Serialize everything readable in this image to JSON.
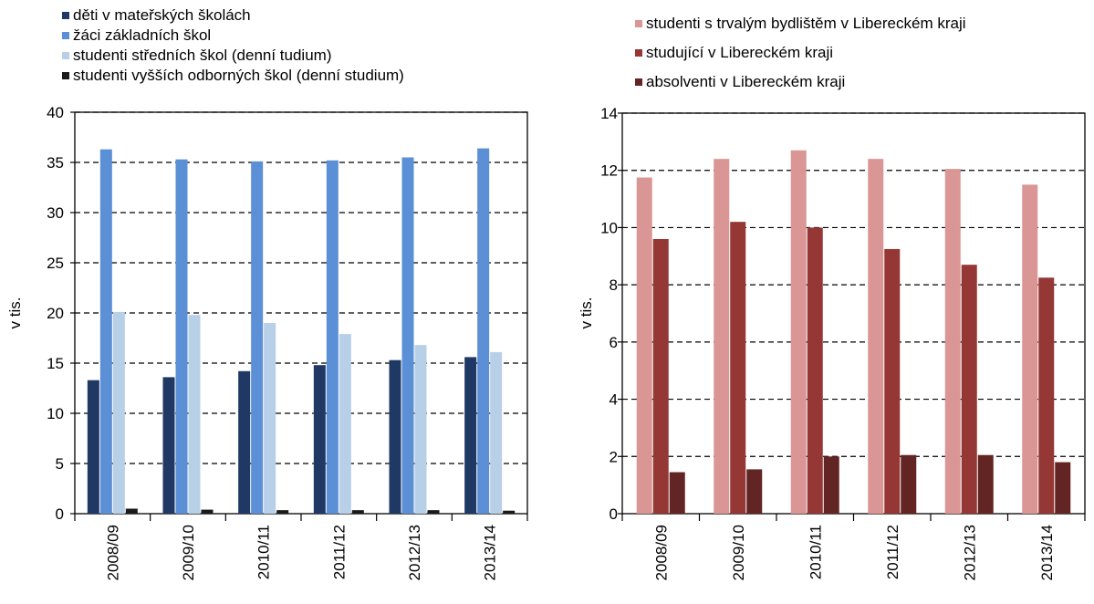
{
  "chart_data": [
    {
      "type": "bar",
      "categories": [
        "2008/09",
        "2009/10",
        "2010/11",
        "2011/12",
        "2012/13",
        "2013/14"
      ],
      "ylabel": "v tis.",
      "xlabel": "",
      "ylim": [
        0,
        40
      ],
      "yticks": [
        0,
        5,
        10,
        15,
        20,
        25,
        30,
        35,
        40
      ],
      "grid": true,
      "legend_position": "top-left",
      "series": [
        {
          "name": "děti v mateřských školách",
          "color": "#1f3864",
          "values": [
            13.3,
            13.6,
            14.2,
            14.8,
            15.3,
            15.6
          ]
        },
        {
          "name": "žáci základních škol",
          "color": "#5b8fd6",
          "values": [
            36.3,
            35.3,
            35.1,
            35.2,
            35.5,
            36.4
          ]
        },
        {
          "name": "studenti středních škol (denní tudium)",
          "color": "#b8cfe8",
          "values": [
            20.1,
            19.8,
            19.0,
            17.9,
            16.8,
            16.1
          ]
        },
        {
          "name": "studenti vyšších odborných škol (denní studium)",
          "color": "#1a1a1a",
          "values": [
            0.5,
            0.4,
            0.35,
            0.35,
            0.35,
            0.3
          ]
        }
      ]
    },
    {
      "type": "bar",
      "categories": [
        "2008/09",
        "2009/10",
        "2010/11",
        "2011/12",
        "2012/13",
        "2013/14"
      ],
      "ylabel": "v tis.",
      "xlabel": "",
      "ylim": [
        0,
        14
      ],
      "yticks": [
        0,
        2,
        4,
        6,
        8,
        10,
        12,
        14
      ],
      "grid": true,
      "legend_position": "top",
      "series": [
        {
          "name": "studenti s trvalým bydlištěm v Libereckém kraji",
          "color": "#d99694",
          "values": [
            11.75,
            12.4,
            12.7,
            12.4,
            12.05,
            11.5
          ]
        },
        {
          "name": "studující v Libereckém kraji",
          "color": "#953735",
          "values": [
            9.6,
            10.2,
            10.0,
            9.25,
            8.7,
            8.25
          ]
        },
        {
          "name": "absolventi v Libereckém kraji",
          "color": "#632523",
          "values": [
            1.45,
            1.55,
            2.0,
            2.05,
            2.05,
            1.8
          ]
        }
      ]
    }
  ]
}
